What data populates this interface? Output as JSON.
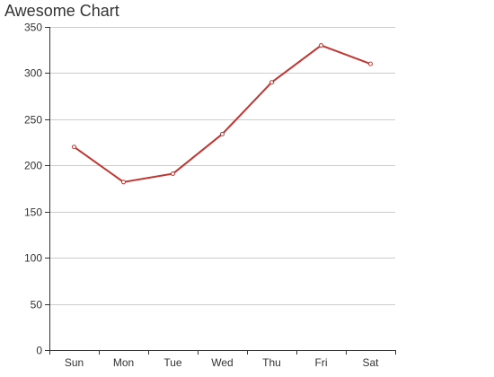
{
  "chart_data": {
    "type": "line",
    "title": "Awesome Chart",
    "categories": [
      "Sun",
      "Mon",
      "Tue",
      "Wed",
      "Thu",
      "Fri",
      "Sat"
    ],
    "series": [
      {
        "values": [
          220,
          182,
          191,
          234,
          290,
          330,
          310
        ],
        "color": "#c23531"
      }
    ],
    "ylim": [
      0,
      350
    ],
    "yticks": [
      0,
      50,
      100,
      150,
      200,
      250,
      300,
      350
    ],
    "grid": true,
    "colors": {
      "axis": "#333333",
      "grid": "#cccccc",
      "marker_fill": "#ffffff"
    }
  }
}
